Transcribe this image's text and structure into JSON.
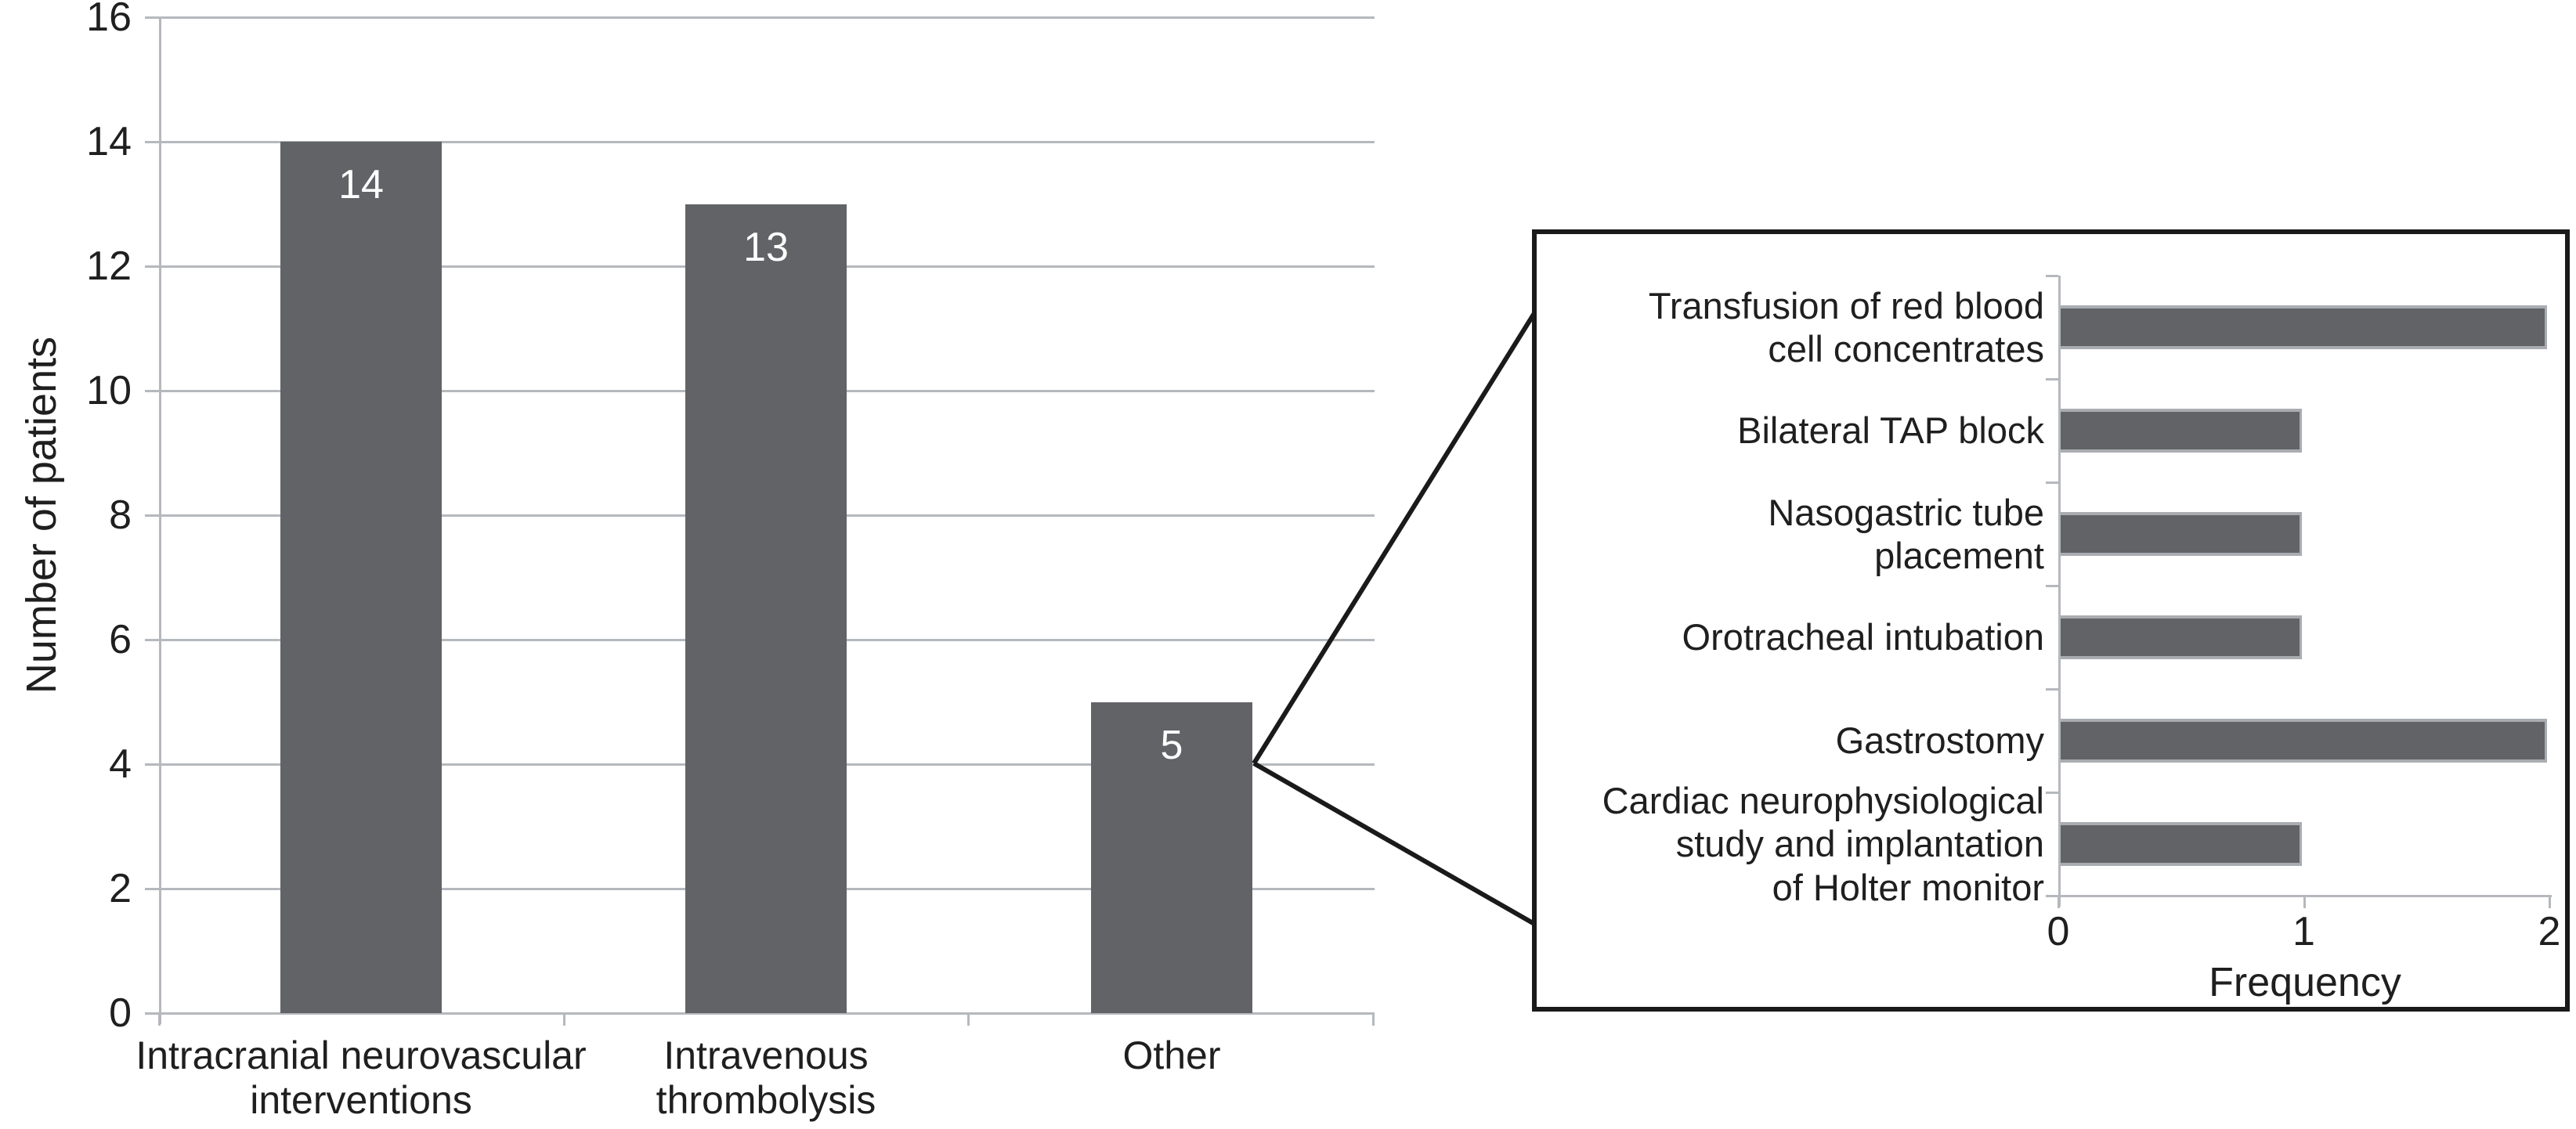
{
  "colors": {
    "bar_fill": "#616367",
    "inset_bar_edge": "#a9acb1",
    "grid": "#b5b8bd",
    "text": "#1f1f1f",
    "box_border": "#1a1a1a",
    "bar_value_label": "#ffffff",
    "background": "#ffffff"
  },
  "chart_data": [
    {
      "id": "main",
      "type": "bar",
      "orientation": "vertical",
      "title": "",
      "xlabel": "",
      "ylabel": "Number of patients",
      "ylim": [
        0,
        16
      ],
      "yticks": [
        0,
        2,
        4,
        6,
        8,
        10,
        12,
        14,
        16
      ],
      "grid": true,
      "legend": null,
      "categories": [
        "Intracranial neurovascular interventions",
        "Intravenous thrombolysis",
        "Other"
      ],
      "category_lines": [
        [
          "Intracranial neurovascular",
          "interventions"
        ],
        [
          "Intravenous",
          "thrombolysis"
        ],
        [
          "Other"
        ]
      ],
      "values": [
        14,
        13,
        5
      ],
      "bar_labels": [
        "14",
        "13",
        "5"
      ]
    },
    {
      "id": "inset",
      "type": "bar",
      "orientation": "horizontal",
      "title": "",
      "xlabel": "Frequency",
      "ylabel": "",
      "xlim": [
        0,
        2
      ],
      "xticks": [
        0,
        1,
        2
      ],
      "grid": false,
      "legend": null,
      "categories": [
        "Transfusion of red blood cell concentrates",
        "Bilateral TAP block",
        "Nasogastric tube placement",
        "Orotracheal intubation",
        "Gastrostomy",
        "Cardiac neurophysiological study and implantation of Holter monitor"
      ],
      "category_lines": [
        [
          "Transfusion of red blood",
          "cell concentrates"
        ],
        [
          "Bilateral TAP block"
        ],
        [
          "Nasogastric tube",
          "placement"
        ],
        [
          "Orotracheal intubation"
        ],
        [
          "Gastrostomy"
        ],
        [
          "Cardiac neurophysiological",
          "study and implantation",
          "of Holter monitor"
        ]
      ],
      "values": [
        2,
        1,
        1,
        1,
        2,
        1
      ],
      "detail_of_category": "Other"
    }
  ]
}
